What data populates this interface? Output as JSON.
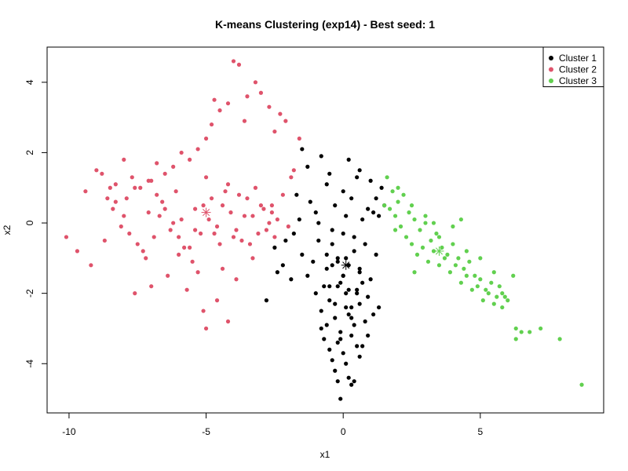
{
  "chart_data": {
    "type": "scatter",
    "title": "K-means Clustering (exp14) - Best seed: 1",
    "xlabel": "x1",
    "ylabel": "x2",
    "xlim": [
      -10.8,
      9.5
    ],
    "ylim": [
      -5.4,
      5.0
    ],
    "xticks": [
      -10,
      -5,
      0,
      5
    ],
    "yticks": [
      -4,
      -2,
      0,
      2,
      4
    ],
    "xtick_labels": [
      "-10",
      "-5",
      "0",
      "5"
    ],
    "ytick_labels": [
      "-4",
      "-2",
      "0",
      "2",
      "4"
    ],
    "grid": false,
    "legend_position": "top-right",
    "series": [
      {
        "name": "Cluster 1",
        "color": "#000000",
        "centroid": [
          0.1,
          -1.2
        ],
        "x": [
          -1.5,
          -1.3,
          -0.8,
          -0.5,
          0.2,
          0.6,
          1.0,
          1.4,
          -1.7,
          -1.2,
          -0.6,
          0.0,
          0.5,
          1.2,
          1.5,
          -1.0,
          -0.3,
          0.3,
          0.9,
          1.3,
          -1.6,
          -0.9,
          0.1,
          0.7,
          1.1,
          -2.5,
          -2.1,
          -1.8,
          -2.4,
          -1.5,
          -2.8,
          -1.9,
          -2.2,
          -0.9,
          -0.4,
          0.0,
          0.4,
          0.8,
          1.2,
          -1.1,
          -0.6,
          -0.2,
          0.2,
          0.6,
          1.0,
          -1.3,
          -0.7,
          -0.1,
          0.5,
          0.9,
          1.3,
          -1.0,
          -0.5,
          0.1,
          0.6,
          1.1,
          -0.8,
          -0.3,
          0.3,
          0.8,
          -0.6,
          -0.1,
          0.4,
          0.9,
          -0.7,
          -0.2,
          0.3,
          0.7,
          -0.5,
          0.0,
          0.5,
          -0.4,
          0.1,
          0.6,
          -0.3,
          0.2,
          -0.2,
          0.3,
          -0.1,
          0.4,
          -0.5,
          0.0,
          0.7,
          -0.3,
          0.2,
          -0.4,
          0.1,
          0.6,
          -0.6,
          0.0,
          0.5,
          -0.2,
          0.1,
          -0.8,
          0.3,
          -0.1,
          0.2,
          0.4,
          -0.4,
          -0.2
        ],
        "y": [
          2.1,
          1.6,
          1.9,
          1.4,
          1.8,
          1.5,
          1.2,
          1.0,
          0.8,
          0.6,
          1.1,
          0.9,
          1.3,
          0.7,
          0.5,
          0.3,
          0.5,
          0.7,
          0.4,
          0.2,
          0.1,
          0.0,
          0.2,
          0.1,
          0.3,
          -0.7,
          -0.5,
          -0.3,
          -1.4,
          -0.9,
          -2.2,
          -1.6,
          -1.2,
          -0.5,
          -0.6,
          -0.3,
          -0.8,
          -0.6,
          -0.9,
          -1.1,
          -1.3,
          -1.0,
          -1.2,
          -1.4,
          -1.6,
          -1.5,
          -1.8,
          -1.7,
          -1.9,
          -2.1,
          -2.4,
          -2.0,
          -2.2,
          -2.0,
          -2.3,
          -2.6,
          -2.5,
          -2.7,
          -2.4,
          -2.8,
          -2.9,
          -3.1,
          -2.9,
          -3.2,
          -3.3,
          -3.4,
          -3.2,
          -3.5,
          -3.6,
          -3.7,
          -3.5,
          -3.9,
          -4.0,
          -3.8,
          -4.2,
          -4.4,
          -4.5,
          -4.6,
          -5.0,
          -4.5,
          -1.8,
          -1.5,
          -1.7,
          -2.3,
          -2.6,
          -1.2,
          -1.0,
          -1.3,
          -0.9,
          -1.5,
          -2.0,
          -1.8,
          -2.4,
          -3.0,
          -2.7,
          -3.3,
          -1.9,
          -0.4,
          -0.2,
          -1.1
        ]
      },
      {
        "name": "Cluster 2",
        "color": "#DF536B",
        "centroid": [
          -5.0,
          0.3
        ],
        "x": [
          -10.1,
          -9.7,
          -9.2,
          -8.8,
          -8.5,
          -8.3,
          -8.0,
          -7.8,
          -7.5,
          -7.2,
          -7.0,
          -6.8,
          -6.5,
          -6.2,
          -6.0,
          -5.8,
          -5.5,
          -5.3,
          -5.1,
          -4.9,
          -4.7,
          -4.5,
          -4.3,
          -4.1,
          -3.9,
          -3.7,
          -3.5,
          -3.3,
          -3.1,
          -2.9,
          -2.7,
          -2.5,
          -9.4,
          -9.0,
          -8.7,
          -8.4,
          -8.1,
          -7.9,
          -7.6,
          -7.3,
          -7.1,
          -6.9,
          -6.6,
          -6.3,
          -6.1,
          -5.9,
          -5.6,
          -5.4,
          -5.2,
          -5.0,
          -4.8,
          -4.6,
          -4.4,
          -4.2,
          -4.0,
          -3.8,
          -3.6,
          -3.4,
          -3.2,
          -3.0,
          -2.8,
          -2.6,
          -2.4,
          -2.2,
          -2.0,
          -1.9,
          -1.8,
          -1.6,
          -2.1,
          -2.3,
          -2.5,
          -2.7,
          -3.0,
          -3.2,
          -3.5,
          -3.8,
          -4.0,
          -4.2,
          -4.5,
          -4.8,
          -5.0,
          -5.3,
          -5.6,
          -5.9,
          -6.2,
          -6.5,
          -6.8,
          -7.1,
          -7.4,
          -7.7,
          -8.0,
          -8.3,
          -8.6,
          -3.6,
          -5.1,
          -5.0,
          -4.6,
          -4.2,
          -3.9,
          -5.7,
          -6.4,
          -7.0,
          -7.6,
          -4.4,
          -3.3,
          -2.6,
          -6.0,
          -6.7,
          -5.4,
          -4.7
        ],
        "y": [
          -0.4,
          -0.8,
          -1.2,
          1.4,
          1.0,
          0.6,
          0.2,
          -0.3,
          -0.6,
          -1.0,
          1.2,
          0.8,
          0.4,
          0.0,
          -0.4,
          -0.7,
          -1.1,
          -1.4,
          0.5,
          0.1,
          -0.3,
          -0.6,
          0.9,
          0.3,
          -0.2,
          -0.5,
          0.7,
          0.2,
          -0.3,
          0.4,
          0.0,
          -0.4,
          0.9,
          1.5,
          -0.5,
          0.4,
          -0.1,
          0.7,
          1.0,
          -0.8,
          0.3,
          -0.4,
          0.6,
          -0.2,
          0.9,
          0.1,
          -0.7,
          0.4,
          -0.3,
          1.3,
          0.7,
          -0.1,
          0.5,
          1.1,
          -0.4,
          0.8,
          0.2,
          -0.6,
          1.0,
          0.5,
          -0.2,
          0.3,
          0.1,
          0.8,
          -0.1,
          1.3,
          1.5,
          2.4,
          2.9,
          3.1,
          2.6,
          3.3,
          3.7,
          4.0,
          3.6,
          4.5,
          4.6,
          3.4,
          3.2,
          2.8,
          2.4,
          2.1,
          1.8,
          2.0,
          1.6,
          1.4,
          1.7,
          1.2,
          1.0,
          1.3,
          1.8,
          1.1,
          0.7,
          2.9,
          -2.5,
          -3.0,
          -2.2,
          -2.8,
          -1.6,
          -1.9,
          -1.5,
          -1.8,
          -2.0,
          -1.3,
          -1.0,
          0.5,
          -0.9,
          0.2,
          -0.2,
          3.5
        ]
      },
      {
        "name": "Cluster 3",
        "color": "#61D04F",
        "centroid": [
          3.5,
          -0.8
        ],
        "x": [
          1.6,
          1.8,
          2.0,
          2.2,
          2.4,
          2.6,
          2.8,
          3.0,
          3.2,
          3.4,
          3.6,
          3.8,
          4.0,
          4.2,
          4.4,
          4.6,
          4.8,
          5.0,
          5.2,
          5.4,
          5.6,
          5.8,
          6.0,
          1.7,
          1.9,
          2.1,
          2.3,
          2.5,
          2.7,
          2.9,
          3.1,
          3.3,
          3.5,
          3.7,
          3.9,
          4.1,
          4.3,
          4.5,
          4.7,
          4.9,
          5.1,
          5.3,
          5.5,
          5.7,
          5.9,
          1.5,
          2.0,
          2.5,
          3.0,
          3.5,
          4.0,
          4.5,
          5.0,
          5.5,
          6.3,
          6.5,
          6.8,
          7.2,
          7.9,
          8.7,
          6.2,
          6.3,
          5.8,
          4.3,
          3.3,
          2.6,
          1.9
        ],
        "y": [
          1.3,
          0.9,
          0.6,
          0.8,
          0.3,
          0.1,
          -0.2,
          0.0,
          -0.5,
          -0.3,
          -0.7,
          -0.9,
          -0.6,
          -1.0,
          -1.3,
          -1.1,
          -1.5,
          -1.6,
          -1.9,
          -1.7,
          -2.1,
          -2.0,
          -2.2,
          0.4,
          0.2,
          -0.1,
          -0.4,
          -0.6,
          -0.9,
          -0.7,
          -1.1,
          -0.8,
          -1.2,
          -1.0,
          -1.4,
          -1.2,
          -1.7,
          -1.5,
          -1.9,
          -1.8,
          -2.2,
          -2.0,
          -2.3,
          -1.8,
          -2.1,
          0.5,
          1.0,
          0.5,
          0.2,
          -0.4,
          -0.1,
          -0.8,
          -1.0,
          -1.4,
          -3.0,
          -3.1,
          -3.1,
          -3.0,
          -3.3,
          -4.6,
          -1.5,
          -3.3,
          -2.4,
          0.1,
          0.0,
          -1.4,
          -0.2
        ]
      }
    ]
  }
}
